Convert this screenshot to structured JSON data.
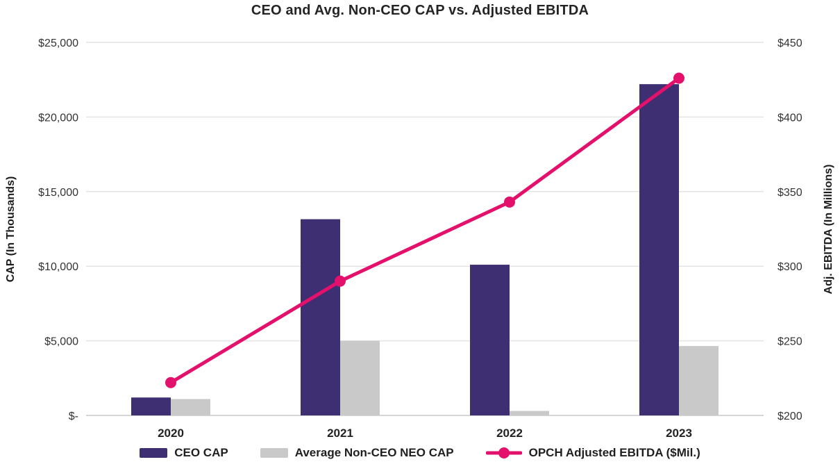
{
  "chart_data": {
    "type": "combo_bar_line",
    "title": "CEO and Avg. Non-CEO CAP vs. Adjusted EBITDA",
    "categories": [
      "2020",
      "2021",
      "2022",
      "2023"
    ],
    "bar_series": [
      {
        "name": "CEO CAP",
        "axis": "left",
        "color": "#3e2e72",
        "values": [
          1200,
          13150,
          10100,
          22200
        ]
      },
      {
        "name": "Average Non-CEO NEO CAP",
        "axis": "left",
        "color": "#c9c9c9",
        "values": [
          1100,
          5000,
          300,
          4650
        ]
      }
    ],
    "line_series": [
      {
        "name": "OPCH Adjusted EBITDA ($Mil.)",
        "axis": "right",
        "color": "#e3106c",
        "values": [
          222,
          290,
          343,
          426
        ]
      }
    ],
    "left_axis": {
      "title": "CAP (In Thousands)",
      "min": 0,
      "max": 25000,
      "tick_labels": [
        "$-",
        "$5,000",
        "$10,000",
        "$15,000",
        "$20,000",
        "$25,000"
      ]
    },
    "right_axis": {
      "title": "Adj. EBITDA (In Millions)",
      "min": 200,
      "max": 450,
      "tick_labels": [
        "$200",
        "$250",
        "$300",
        "$350",
        "$400",
        "$450"
      ]
    },
    "grid": true,
    "legend_position": "bottom",
    "colors": {
      "gridline": "#e4e4e4",
      "axis_line": "#d6d6d6",
      "title_text": "#242424",
      "tick_text": "#333333"
    }
  }
}
